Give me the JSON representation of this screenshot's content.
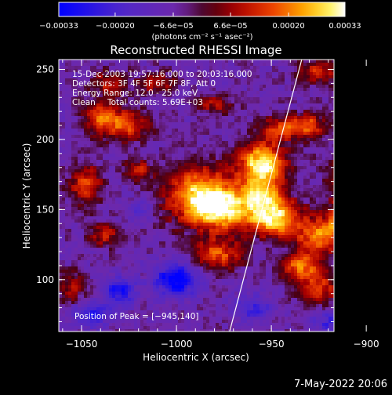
{
  "chart_data": {
    "type": "heatmap",
    "title": "Reconstructed RHESSI Image",
    "xlabel": "Heliocentric X (arcsec)",
    "ylabel": "Heliocentric Y (arcsec)",
    "xlim": [
      -1062,
      -917
    ],
    "ylim": [
      63,
      257
    ],
    "x_ticks": [
      {
        "value": -1050,
        "label": "−1050"
      },
      {
        "value": -1000,
        "label": "−1000"
      },
      {
        "value": -950,
        "label": "−950"
      },
      {
        "value": -900,
        "label": "−900"
      }
    ],
    "y_ticks": [
      {
        "value": 100,
        "label": "100"
      },
      {
        "value": 150,
        "label": "150"
      },
      {
        "value": 200,
        "label": "200"
      },
      {
        "value": 250,
        "label": "250"
      }
    ],
    "colorbar": {
      "range": [
        -0.00033,
        0.00033
      ],
      "ticks": [
        {
          "value": -0.00033,
          "label": "−0.00033"
        },
        {
          "value": -0.0002,
          "label": "−0.00020"
        },
        {
          "value": -6.6e-05,
          "label": "−6.6e−05"
        },
        {
          "value": 6.6e-05,
          "label": "6.6e−05"
        },
        {
          "value": 0.0002,
          "label": "0.00020"
        },
        {
          "value": 0.00033,
          "label": "0.00033"
        }
      ],
      "units_label": "(photons cm⁻² s⁻¹ asec⁻²)"
    },
    "annotations": {
      "time_range": "15-Dec-2003 19:57:16.000 to 20:03:16.000",
      "detectors": "Detectors: 3F 4F 5F 6F 7F 8F, Att 0",
      "energy_range": "Energy Range: 12.0 - 25.0 keV",
      "clean": "Clean",
      "total_counts": "Total counts: 5.69E+03",
      "peak_position": "Position of Peak = [−945,140]"
    },
    "limb_line": [
      {
        "x": -972,
        "y": 63
      },
      {
        "x": -934,
        "y": 257
      }
    ],
    "emission_blobs": [
      {
        "x": -955,
        "y": 182,
        "sx": 9,
        "sy": 11,
        "amp": 1.0
      },
      {
        "x": -948,
        "y": 143,
        "sx": 10,
        "sy": 9,
        "amp": 0.95
      },
      {
        "x": -988,
        "y": 160,
        "sx": 12,
        "sy": 14,
        "amp": 0.9
      },
      {
        "x": -975,
        "y": 150,
        "sx": 10,
        "sy": 10,
        "amp": 0.75
      },
      {
        "x": -955,
        "y": 160,
        "sx": 8,
        "sy": 8,
        "amp": 0.7
      },
      {
        "x": -978,
        "y": 118,
        "sx": 9,
        "sy": 8,
        "amp": 0.6
      },
      {
        "x": -935,
        "y": 110,
        "sx": 7,
        "sy": 7,
        "amp": 0.6
      },
      {
        "x": -905,
        "y": 175,
        "sx": 9,
        "sy": 15,
        "amp": 0.7
      },
      {
        "x": -908,
        "y": 140,
        "sx": 10,
        "sy": 10,
        "amp": 0.75
      },
      {
        "x": -925,
        "y": 130,
        "sx": 8,
        "sy": 8,
        "amp": 0.6
      },
      {
        "x": -945,
        "y": 208,
        "sx": 8,
        "sy": 6,
        "amp": 0.55
      },
      {
        "x": -1028,
        "y": 210,
        "sx": 10,
        "sy": 8,
        "amp": 0.6
      },
      {
        "x": -1040,
        "y": 218,
        "sx": 6,
        "sy": 7,
        "amp": 0.5
      },
      {
        "x": -1048,
        "y": 168,
        "sx": 6,
        "sy": 10,
        "amp": 0.55
      },
      {
        "x": -1020,
        "y": 178,
        "sx": 5,
        "sy": 5,
        "amp": 0.5
      },
      {
        "x": -1038,
        "y": 132,
        "sx": 6,
        "sy": 6,
        "amp": 0.45
      },
      {
        "x": -1055,
        "y": 95,
        "sx": 5,
        "sy": 8,
        "amp": 0.4
      },
      {
        "x": -925,
        "y": 95,
        "sx": 8,
        "sy": 10,
        "amp": 0.5
      },
      {
        "x": -930,
        "y": 210,
        "sx": 6,
        "sy": 6,
        "amp": 0.55
      },
      {
        "x": -925,
        "y": 248,
        "sx": 8,
        "sy": 6,
        "amp": 0.5
      },
      {
        "x": -1010,
        "y": 240,
        "sx": 6,
        "sy": 5,
        "amp": 0.45
      },
      {
        "x": -980,
        "y": 225,
        "sx": 7,
        "sy": 5,
        "amp": 0.4
      },
      {
        "x": -1035,
        "y": 240,
        "sx": 7,
        "sy": 6,
        "amp": 0.45
      }
    ],
    "negative_blobs": [
      {
        "x": -1000,
        "y": 100,
        "sx": 8,
        "sy": 8,
        "amp": 0.8
      },
      {
        "x": -1030,
        "y": 92,
        "sx": 6,
        "sy": 7,
        "amp": 0.6
      },
      {
        "x": -1045,
        "y": 75,
        "sx": 7,
        "sy": 6,
        "amp": 0.5
      },
      {
        "x": -960,
        "y": 80,
        "sx": 7,
        "sy": 7,
        "amp": 0.4
      },
      {
        "x": -1020,
        "y": 150,
        "sx": 5,
        "sy": 5,
        "amp": 0.3
      },
      {
        "x": -920,
        "y": 70,
        "sx": 6,
        "sy": 6,
        "amp": 0.4
      }
    ]
  },
  "footer": {
    "date": "7-May-2022 20:06"
  }
}
